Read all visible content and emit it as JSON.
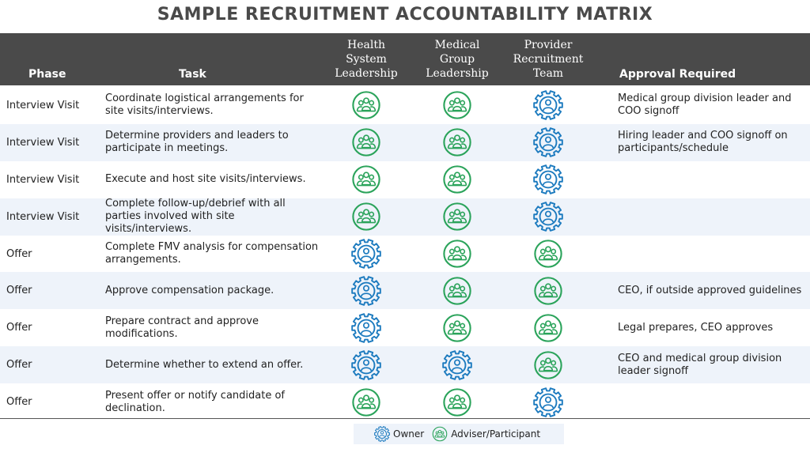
{
  "title": "SAMPLE RECRUITMENT ACCOUNTABILITY MATRIX",
  "colors": {
    "owner": "#1d7bbf",
    "adviser": "#2aa35a",
    "header_bg": "#4a4a4a",
    "alt_row": "#eef3fa"
  },
  "columns": {
    "phase": "Phase",
    "task": "Task",
    "hsl": [
      "Health",
      "System",
      "Leadership"
    ],
    "mgl": [
      "Medical",
      "Group",
      "Leadership"
    ],
    "prt": [
      "Provider",
      "Recruitment",
      "Team"
    ],
    "approval": "Approval Required"
  },
  "rows": [
    {
      "phase": "Interview Visit",
      "task": "Coordinate logistical arrangements for site visits/interviews.",
      "hsl": "adviser",
      "mgl": "adviser",
      "prt": "owner",
      "approval": "Medical group division leader and COO signoff"
    },
    {
      "phase": "Interview Visit",
      "task": "Determine providers and leaders to participate in meetings.",
      "hsl": "adviser",
      "mgl": "adviser",
      "prt": "owner",
      "approval": "Hiring leader and COO signoff on participants/schedule"
    },
    {
      "phase": "Interview Visit",
      "task": "Execute and host site visits/interviews.",
      "hsl": "adviser",
      "mgl": "adviser",
      "prt": "owner",
      "approval": ""
    },
    {
      "phase": "Interview Visit",
      "task": "Complete follow-up/debrief with all parties involved with site visits/interviews.",
      "hsl": "adviser",
      "mgl": "adviser",
      "prt": "owner",
      "approval": ""
    },
    {
      "phase": "Offer",
      "task": "Complete FMV analysis for compensation arrangements.",
      "hsl": "owner",
      "mgl": "adviser",
      "prt": "adviser",
      "approval": ""
    },
    {
      "phase": "Offer",
      "task": "Approve compensation package.",
      "hsl": "owner",
      "mgl": "adviser",
      "prt": "adviser",
      "approval": "CEO, if outside approved guidelines"
    },
    {
      "phase": "Offer",
      "task": "Prepare contract and approve modifications.",
      "hsl": "owner",
      "mgl": "adviser",
      "prt": "adviser",
      "approval": "Legal prepares, CEO approves"
    },
    {
      "phase": "Offer",
      "task": "Determine whether to extend an offer.",
      "hsl": "owner",
      "mgl": "owner",
      "prt": "adviser",
      "approval": "CEO and medical group division leader signoff"
    },
    {
      "phase": "Offer",
      "task": "Present offer or notify candidate of declination.",
      "hsl": "adviser",
      "mgl": "adviser",
      "prt": "owner",
      "approval": ""
    }
  ],
  "legend": {
    "owner_label": "Owner",
    "adviser_label": "Adviser/Participant",
    "owner_icon": "gear-person-icon",
    "adviser_icon": "group-icon"
  }
}
